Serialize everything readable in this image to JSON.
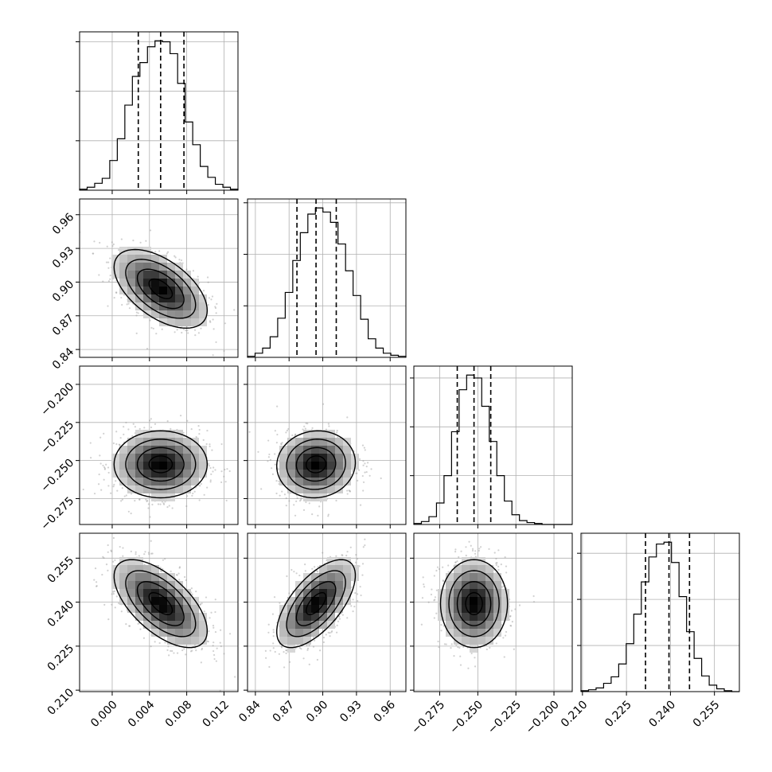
{
  "chart_data": {
    "type": "corner",
    "title": "",
    "parameters": [
      {
        "label": "",
        "range": [
          -0.0035,
          0.0135
        ],
        "ticks": [
          0.0,
          0.004,
          0.008,
          0.012
        ],
        "tick_labels": [
          "0.000",
          "0.004",
          "0.008",
          "0.012"
        ],
        "quantiles": [
          0.0028,
          0.0052,
          0.0077
        ]
      },
      {
        "label": "",
        "range": [
          0.833,
          0.974
        ],
        "ticks": [
          0.84,
          0.87,
          0.9,
          0.93,
          0.96
        ],
        "tick_labels": [
          "0.84",
          "0.87",
          "0.90",
          "0.93",
          "0.96"
        ],
        "quantiles": [
          0.877,
          0.894,
          0.912
        ]
      },
      {
        "label": "",
        "range": [
          -0.292,
          -0.188
        ],
        "ticks": [
          -0.275,
          -0.25,
          -0.225,
          -0.2
        ],
        "tick_labels": [
          "−0.275",
          "−0.250",
          "−0.225",
          "−0.200"
        ],
        "quantiles": [
          -0.2635,
          -0.2525,
          -0.2415
        ]
      },
      {
        "label": "",
        "range": [
          0.2095,
          0.2635
        ],
        "ticks": [
          0.21,
          0.225,
          0.24,
          0.255
        ],
        "tick_labels": [
          "0.210",
          "0.225",
          "0.240",
          "0.255"
        ],
        "quantiles": [
          0.2315,
          0.2395,
          0.2465
        ]
      }
    ],
    "histograms": [
      {
        "param": 0,
        "bin_edges_range": [
          -0.0035,
          0.0135
        ],
        "counts": [
          1,
          3,
          7,
          12,
          30,
          52,
          86,
          115,
          129,
          145,
          151,
          150,
          138,
          108,
          69,
          46,
          24,
          13,
          6,
          3,
          1
        ]
      },
      {
        "param": 1,
        "bin_edges_range": [
          0.833,
          0.974
        ],
        "counts": [
          1,
          4,
          9,
          20,
          38,
          63,
          94,
          121,
          139,
          145,
          141,
          131,
          110,
          84,
          60,
          37,
          18,
          9,
          4,
          2,
          1
        ]
      },
      {
        "param": 2,
        "bin_edges_range": [
          -0.292,
          -0.188
        ],
        "counts": [
          1,
          3,
          8,
          22,
          50,
          95,
          138,
          153,
          150,
          121,
          85,
          50,
          24,
          10,
          4,
          2,
          1,
          0,
          0,
          0,
          0
        ]
      },
      {
        "param": 3,
        "bin_edges_range": [
          0.2095,
          0.2635
        ],
        "counts": [
          1,
          2,
          4,
          9,
          16,
          30,
          52,
          84,
          119,
          146,
          160,
          162,
          140,
          103,
          65,
          36,
          17,
          7,
          3,
          1,
          0
        ]
      }
    ],
    "pair_contours": [
      {
        "x_param": 0,
        "y_param": 1,
        "mean": [
          0.0052,
          0.894
        ],
        "std": [
          0.0025,
          0.0175
        ],
        "correlation": -0.55
      },
      {
        "x_param": 0,
        "y_param": 2,
        "mean": [
          0.0052,
          -0.2525
        ],
        "std": [
          0.0025,
          0.011
        ],
        "correlation": 0.0
      },
      {
        "x_param": 1,
        "y_param": 2,
        "mean": [
          0.894,
          -0.2525
        ],
        "std": [
          0.0175,
          0.011
        ],
        "correlation": 0.05
      },
      {
        "x_param": 0,
        "y_param": 3,
        "mean": [
          0.0052,
          0.2395
        ],
        "std": [
          0.0025,
          0.0075
        ],
        "correlation": -0.62
      },
      {
        "x_param": 1,
        "y_param": 3,
        "mean": [
          0.894,
          0.2395
        ],
        "std": [
          0.0175,
          0.0075
        ],
        "correlation": 0.64
      },
      {
        "x_param": 2,
        "y_param": 3,
        "mean": [
          -0.2525,
          0.2395
        ],
        "std": [
          0.011,
          0.0075
        ],
        "correlation": 0.0
      }
    ],
    "contour_sigma_levels": [
      0.5,
      1.0,
      1.5,
      2.0
    ],
    "quantile_line_style": "dashed",
    "scatter": "light gray sample points outside contours",
    "grid": true,
    "colors": {
      "line": "#000000",
      "grid": "#b0b0b0",
      "points": "#9a9a9a",
      "density_light": "#f2f2f2",
      "density_dark": "#000000"
    }
  }
}
